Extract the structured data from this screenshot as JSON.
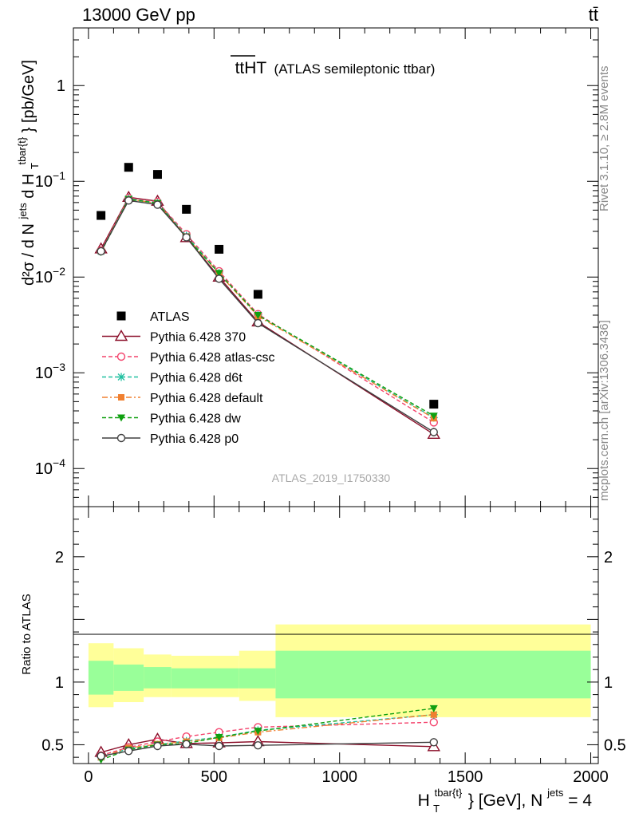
{
  "header": {
    "energy": "13000 GeV pp",
    "process": "tt̄"
  },
  "plot_title": {
    "main": "ttHT",
    "sub": "(ATLAS semileptonic ttbar)"
  },
  "side": {
    "rivet": "Rivet 3.1.10, ≥ 2.8M events",
    "mcplots": "mcplots.cern.ch [arXiv:1306.3436]"
  },
  "analysis_id": "ATLAS_2019_I1750330",
  "chart_data": [
    {
      "type": "scatter",
      "panel": "main",
      "scale": "log",
      "ylabel": {
        "base": "d²σ / d N",
        "sup1": "jets",
        "mid": " d H",
        "sub2": "T",
        "sup2": "tbar{t}",
        "tail": "} [pb/GeV]"
      },
      "ylim": [
        4e-05,
        4
      ],
      "yticks": [
        {
          "v": 0.0001,
          "base": "10",
          "exp": "−4"
        },
        {
          "v": 0.001,
          "base": "10",
          "exp": "−3"
        },
        {
          "v": 0.01,
          "base": "10",
          "exp": "−2"
        },
        {
          "v": 0.1,
          "base": "10",
          "exp": "−1"
        },
        {
          "v": 1,
          "base": "1",
          "exp": ""
        }
      ],
      "x": [
        50,
        160,
        275,
        390,
        520,
        675,
        1375
      ],
      "series": [
        {
          "name": "ATLAS",
          "color": "#000000",
          "marker": "square",
          "values": [
            0.044,
            0.14,
            0.118,
            0.051,
            0.0195,
            0.0066,
            0.00047
          ]
        },
        {
          "name": "Pythia 6.428 370",
          "color": "#8b0f2a",
          "marker": "triangle-open",
          "dash": "",
          "values": [
            0.0197,
            0.068,
            0.062,
            0.0258,
            0.01,
            0.0034,
            0.000228
          ]
        },
        {
          "name": "Pythia 6.428 atlas-csc",
          "color": "#f4436c",
          "marker": "circle-open",
          "dash": "5,3",
          "values": [
            0.019,
            0.067,
            0.061,
            0.028,
            0.0115,
            0.0041,
            0.000303
          ]
        },
        {
          "name": "Pythia 6.428 d6t",
          "color": "#20c0a0",
          "marker": "star",
          "dash": "5,3",
          "values": [
            0.0185,
            0.066,
            0.0595,
            0.027,
            0.011,
            0.004,
            0.00034
          ]
        },
        {
          "name": "Pythia 6.428 default",
          "color": "#f08030",
          "marker": "square-small",
          "dash": "7,3,2,3",
          "values": [
            0.0186,
            0.065,
            0.059,
            0.0265,
            0.0108,
            0.0039,
            0.000335
          ]
        },
        {
          "name": "Pythia 6.428 dw",
          "color": "#10a010",
          "marker": "triangle-down",
          "dash": "5,3",
          "values": [
            0.0182,
            0.065,
            0.059,
            0.026,
            0.011,
            0.004,
            0.000355
          ]
        },
        {
          "name": "Pythia 6.428 p0",
          "color": "#404040",
          "marker": "circle-open",
          "dash": "",
          "values": [
            0.0186,
            0.063,
            0.057,
            0.026,
            0.0096,
            0.0033,
            0.00024
          ]
        }
      ]
    },
    {
      "type": "line",
      "panel": "ratio",
      "ylabel": "Ratio to ATLAS",
      "ylim": [
        0.35,
        2.4
      ],
      "yticks": [
        "0.5",
        "1",
        "2"
      ],
      "xlabel": {
        "base": "H",
        "sub": "T",
        "sup": "tbar{t}",
        "tail": "} [GeV], N",
        "sup2": "jets",
        "end": " = 4"
      },
      "xlim": [
        -60,
        2030
      ],
      "xticks": [
        "0",
        "500",
        "1000",
        "1500",
        "2000"
      ],
      "bands": {
        "edges": [
          0,
          100,
          220,
          330,
          600,
          745,
          2000
        ],
        "inner_lo": [
          0.9,
          0.93,
          0.95,
          0.95,
          0.95,
          0.87
        ],
        "inner_hi": [
          1.17,
          1.14,
          1.12,
          1.11,
          1.11,
          1.25
        ],
        "outer_lo": [
          0.8,
          0.84,
          0.88,
          0.88,
          0.85,
          0.72
        ],
        "outer_hi": [
          1.31,
          1.27,
          1.22,
          1.21,
          1.25,
          1.46
        ],
        "inner_color": "#99ff99",
        "outer_color": "#ffff99"
      },
      "x": [
        50,
        160,
        275,
        390,
        520,
        675,
        1375
      ],
      "series": [
        {
          "name": "Pythia 6.428 370",
          "color": "#8b0f2a",
          "marker": "triangle-open",
          "dash": "",
          "values": [
            0.44,
            0.5,
            0.545,
            0.51,
            0.515,
            0.525,
            0.485
          ]
        },
        {
          "name": "Pythia 6.428 atlas-csc",
          "color": "#f4436c",
          "marker": "circle-open",
          "dash": "5,3",
          "values": [
            0.415,
            0.48,
            0.525,
            0.565,
            0.6,
            0.64,
            0.68
          ]
        },
        {
          "name": "Pythia 6.428 d6t",
          "color": "#20c0a0",
          "marker": "star",
          "dash": "5,3",
          "values": [
            0.4,
            0.47,
            0.5,
            0.53,
            0.56,
            0.615,
            0.74
          ]
        },
        {
          "name": "Pythia 6.428 default",
          "color": "#f08030",
          "marker": "square-small",
          "dash": "7,3,2,3",
          "values": [
            0.4,
            0.475,
            0.505,
            0.525,
            0.555,
            0.6,
            0.74
          ]
        },
        {
          "name": "Pythia 6.428 dw",
          "color": "#10a010",
          "marker": "triangle-down",
          "dash": "5,3",
          "values": [
            0.38,
            0.46,
            0.5,
            0.51,
            0.56,
            0.61,
            0.79
          ]
        },
        {
          "name": "Pythia 6.428 p0",
          "color": "#404040",
          "marker": "circle-open",
          "dash": "",
          "values": [
            0.41,
            0.45,
            0.49,
            0.505,
            0.49,
            0.495,
            0.52
          ]
        }
      ]
    }
  ]
}
